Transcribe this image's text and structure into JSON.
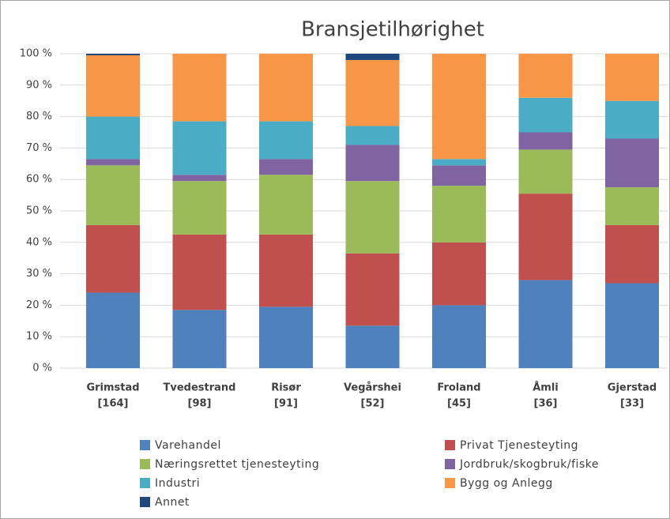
{
  "chart_data": {
    "type": "stacked_bar",
    "title": "Bransjetilhørighet",
    "categories": [
      [
        "Grimstad",
        "[164]"
      ],
      [
        "Tvedestrand",
        "[98]"
      ],
      [
        "Risør",
        "[91]"
      ],
      [
        "Vegårshei",
        "[52]"
      ],
      [
        "Froland",
        "[45]"
      ],
      [
        "Åmli",
        "[36]"
      ],
      [
        "Gjerstad",
        "[33]"
      ]
    ],
    "series": [
      {
        "name": "Varehandel",
        "color": "#4f81bd",
        "values": [
          24,
          18.5,
          19.5,
          13.5,
          20,
          28,
          27
        ]
      },
      {
        "name": "Privat Tjenesteyting",
        "color": "#c0504d",
        "values": [
          21.5,
          24,
          23,
          23,
          20,
          27.5,
          18.5
        ]
      },
      {
        "name": "Næringsrettet tjenesteyting",
        "color": "#9bbb59",
        "values": [
          19,
          17,
          19,
          23,
          18,
          14,
          12
        ]
      },
      {
        "name": "Jordbruk/skogbruk/fiske",
        "color": "#8064a2",
        "values": [
          2,
          2,
          5,
          11.5,
          6.5,
          5.5,
          15.5
        ]
      },
      {
        "name": "Industri",
        "color": "#4bacc6",
        "values": [
          13.5,
          17,
          12,
          6,
          2,
          11,
          12
        ]
      },
      {
        "name": "Bygg og Anlegg",
        "color": "#f79646",
        "values": [
          19.5,
          21.5,
          21.5,
          21,
          33.5,
          14,
          15
        ]
      },
      {
        "name": "Annet",
        "color": "#1f497d",
        "values": [
          0.5,
          0,
          0,
          2,
          0,
          0,
          0
        ]
      }
    ],
    "ylim": [
      0,
      100
    ],
    "yticks": [
      {
        "value": 0,
        "label": "0 %"
      },
      {
        "value": 10,
        "label": "10 %"
      },
      {
        "value": 20,
        "label": "20 %"
      },
      {
        "value": 30,
        "label": "30 %"
      },
      {
        "value": 40,
        "label": "40 %"
      },
      {
        "value": 50,
        "label": "50 %"
      },
      {
        "value": 60,
        "label": "60 %"
      },
      {
        "value": 70,
        "label": "70 %"
      },
      {
        "value": 80,
        "label": "80 %"
      },
      {
        "value": 90,
        "label": "90 %"
      },
      {
        "value": 100,
        "label": "100 %"
      }
    ],
    "grid": true,
    "legend": "bottom"
  }
}
